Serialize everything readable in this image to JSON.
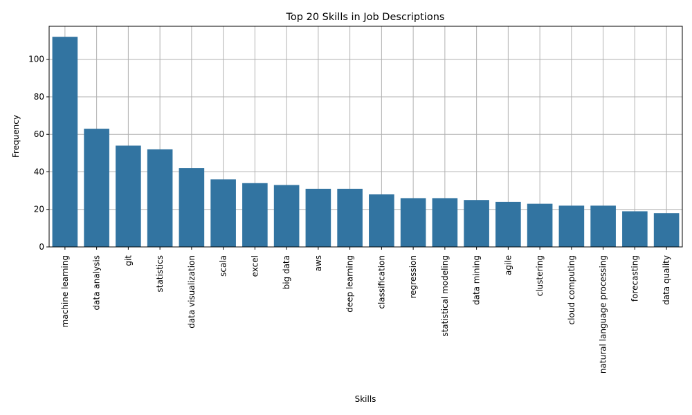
{
  "chart_data": {
    "type": "bar",
    "title": "Top 20 Skills in Job Descriptions",
    "xlabel": "Skills",
    "ylabel": "Frequency",
    "categories": [
      "machine learning",
      "data analysis",
      "git",
      "statistics",
      "data visualization",
      "scala",
      "excel",
      "big data",
      "aws",
      "deep learning",
      "classification",
      "regression",
      "statistical modeling",
      "data mining",
      "agile",
      "clustering",
      "cloud computing",
      "natural language processing",
      "forecasting",
      "data quality"
    ],
    "values": [
      112,
      63,
      54,
      52,
      42,
      36,
      34,
      33,
      31,
      31,
      28,
      26,
      26,
      25,
      24,
      23,
      22,
      22,
      19,
      18
    ],
    "ylim": [
      0,
      117.6
    ],
    "yticks": [
      0,
      20,
      40,
      60,
      80,
      100
    ],
    "grid": true,
    "bar_color": "#3274a1",
    "grid_color": "#b0b0b0"
  }
}
